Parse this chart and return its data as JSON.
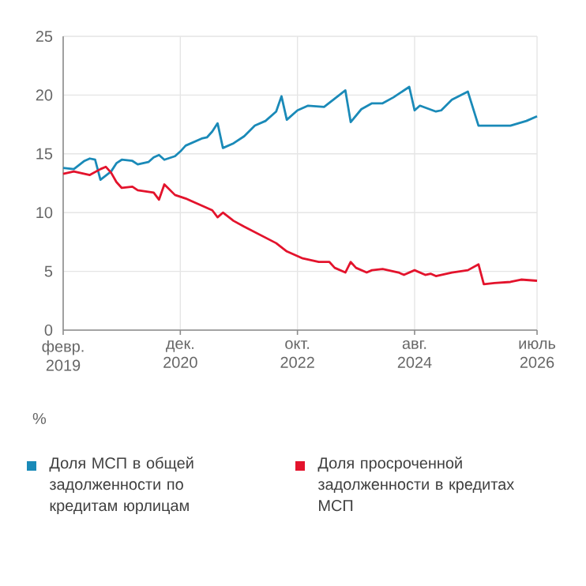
{
  "chart_data": {
    "type": "line",
    "ylabel": "%",
    "xlim": [
      "2019-02",
      "2026-07"
    ],
    "xticks": [
      {
        "value": "2019-02",
        "label": "февр. 2019"
      },
      {
        "value": "2020-12",
        "label": "дек. 2020"
      },
      {
        "value": "2022-10",
        "label": "окт. 2022"
      },
      {
        "value": "2024-08",
        "label": "авг. 2024"
      },
      {
        "value": "2026-07",
        "label": "июль 2026"
      }
    ],
    "ylim": [
      0,
      25
    ],
    "yticks": [
      0,
      5,
      10,
      15,
      20,
      25
    ],
    "grid": true,
    "legend": "bottom",
    "series": [
      {
        "name": "Доля МСП в общей задолженности по кредитам юрлицам",
        "color": "#1a8ab8",
        "x": [
          "2019-02",
          "2019-04",
          "2019-06",
          "2019-07",
          "2019-08",
          "2019-09",
          "2019-11",
          "2019-12",
          "2020-01",
          "2020-03",
          "2020-04",
          "2020-06",
          "2020-07",
          "2020-08",
          "2020-09",
          "2020-11",
          "2020-12",
          "2021-01",
          "2021-02",
          "2021-04",
          "2021-05",
          "2021-06",
          "2021-07",
          "2021-08",
          "2021-10",
          "2021-12",
          "2022-02",
          "2022-04",
          "2022-06",
          "2022-07",
          "2022-08",
          "2022-10",
          "2022-12",
          "2023-03",
          "2023-05",
          "2023-07",
          "2023-08",
          "2023-10",
          "2023-12",
          "2024-02",
          "2024-04",
          "2024-07",
          "2024-08",
          "2024-09",
          "2024-12",
          "2025-01",
          "2025-03",
          "2025-06",
          "2025-08",
          "2025-10",
          "2026-02",
          "2026-05",
          "2026-07"
        ],
        "values": [
          13.8,
          13.7,
          14.4,
          14.6,
          14.5,
          12.8,
          13.5,
          14.2,
          14.5,
          14.4,
          14.1,
          14.3,
          14.7,
          14.9,
          14.5,
          14.8,
          15.2,
          15.7,
          15.9,
          16.3,
          16.4,
          16.9,
          17.6,
          15.5,
          15.9,
          16.5,
          17.4,
          17.8,
          18.6,
          19.9,
          17.9,
          18.7,
          19.1,
          19.0,
          19.7,
          20.4,
          17.7,
          18.8,
          19.3,
          19.3,
          19.8,
          20.7,
          18.7,
          19.1,
          18.6,
          18.7,
          19.6,
          20.3,
          17.4,
          17.4,
          17.4,
          17.8,
          18.2
        ]
      },
      {
        "name": "Доля просроченной задолженности в кредитах МСП",
        "color": "#e3132c",
        "x": [
          "2019-02",
          "2019-04",
          "2019-06",
          "2019-07",
          "2019-09",
          "2019-10",
          "2019-11",
          "2019-12",
          "2020-01",
          "2020-03",
          "2020-04",
          "2020-07",
          "2020-08",
          "2020-09",
          "2020-11",
          "2021-01",
          "2021-04",
          "2021-06",
          "2021-07",
          "2021-08",
          "2021-10",
          "2021-12",
          "2022-03",
          "2022-06",
          "2022-08",
          "2022-11",
          "2023-02",
          "2023-04",
          "2023-05",
          "2023-07",
          "2023-08",
          "2023-09",
          "2023-11",
          "2023-12",
          "2024-02",
          "2024-05",
          "2024-06",
          "2024-08",
          "2024-10",
          "2024-11",
          "2024-12",
          "2025-03",
          "2025-06",
          "2025-08",
          "2025-09",
          "2025-11",
          "2026-02",
          "2026-04",
          "2026-07"
        ],
        "values": [
          13.3,
          13.5,
          13.3,
          13.2,
          13.7,
          13.9,
          13.4,
          12.6,
          12.1,
          12.2,
          11.9,
          11.7,
          11.1,
          12.4,
          11.5,
          11.2,
          10.6,
          10.2,
          9.6,
          10.0,
          9.3,
          8.8,
          8.1,
          7.4,
          6.7,
          6.1,
          5.8,
          5.8,
          5.3,
          4.9,
          5.8,
          5.3,
          4.9,
          5.1,
          5.2,
          4.9,
          4.7,
          5.1,
          4.7,
          4.8,
          4.6,
          4.9,
          5.1,
          5.6,
          3.9,
          4.0,
          4.1,
          4.3,
          4.2
        ]
      }
    ]
  }
}
